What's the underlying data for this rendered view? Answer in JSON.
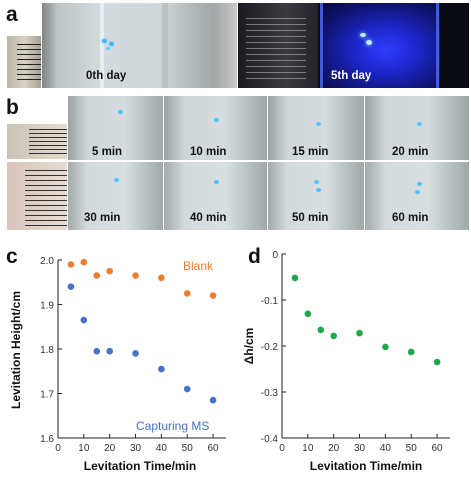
{
  "panel_labels": {
    "a": "a",
    "b": "b",
    "c": "c",
    "d": "d"
  },
  "panel_a": {
    "day0_label": "0th day",
    "day5_label": "5th day"
  },
  "panel_b": {
    "frames": [
      "5 min",
      "10 min",
      "15 min",
      "20 min",
      "30 min",
      "40 min",
      "50 min",
      "60 min"
    ]
  },
  "colors": {
    "blank": "#ED7D31",
    "capturing": "#4472C4",
    "delta": "#1FA84A",
    "glow": "#2D3CE8"
  },
  "chart_data": [
    {
      "type": "scatter",
      "xlabel": "Levitation Time/min",
      "ylabel": "Levitation Height/cm",
      "xlim": [
        0,
        65
      ],
      "ylim": [
        1.6,
        2.0
      ],
      "xticks": [
        "0",
        "10",
        "20",
        "30",
        "40",
        "50",
        "60"
      ],
      "yticks": [
        "1.6",
        "1.7",
        "1.8",
        "1.9",
        "2.0"
      ],
      "grid": false,
      "series": [
        {
          "name": "Blank",
          "x": [
            5,
            10,
            15,
            20,
            30,
            40,
            50,
            60
          ],
          "y": [
            1.99,
            1.995,
            1.965,
            1.975,
            1.965,
            1.96,
            1.925,
            1.92
          ]
        },
        {
          "name": "Capturing MS",
          "x": [
            5,
            10,
            15,
            20,
            30,
            40,
            50,
            60
          ],
          "y": [
            1.94,
            1.865,
            1.795,
            1.795,
            1.79,
            1.755,
            1.71,
            1.685
          ]
        }
      ]
    },
    {
      "type": "scatter",
      "xlabel": "Levitation Time/min",
      "ylabel": "Δh/cm",
      "xlim": [
        0,
        65
      ],
      "ylim": [
        -0.4,
        0
      ],
      "xticks": [
        "0",
        "10",
        "20",
        "30",
        "40",
        "50",
        "60"
      ],
      "yticks": [
        "0",
        "-0.1",
        "-0.2",
        "-0.3",
        "-0.4"
      ],
      "grid": false,
      "series": [
        {
          "x": [
            5,
            10,
            15,
            20,
            30,
            40,
            50,
            60
          ],
          "y": [
            -0.052,
            -0.13,
            -0.165,
            -0.178,
            -0.172,
            -0.202,
            -0.213,
            -0.235
          ]
        }
      ]
    }
  ]
}
